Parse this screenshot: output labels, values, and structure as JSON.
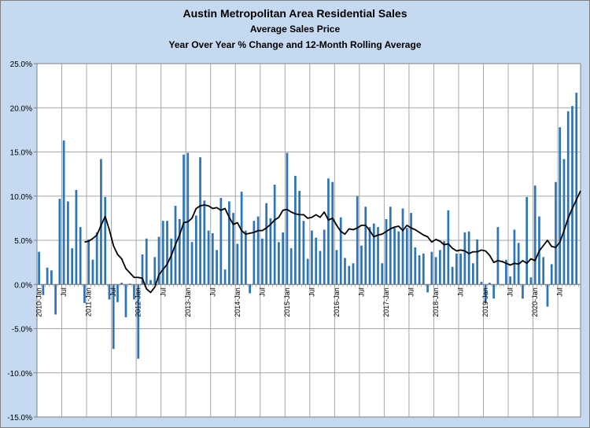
{
  "chart_data": {
    "type": "bar",
    "title": "Austin Metropolitan Area Residential Sales",
    "subtitle": "Average Sales Price",
    "subtitle2": "Year Over Year % Change and  12-Month Rolling Average",
    "ylim": [
      -15,
      25
    ],
    "ytick_labels": [
      "25.0%",
      "20.0%",
      "15.0%",
      "10.0%",
      "5.0%",
      "0.0%",
      "-5.0%",
      "-10.0%",
      "-15.0%"
    ],
    "x_labels": [
      {
        "index": 0,
        "label": "2010-Jan"
      },
      {
        "index": 6,
        "label": "Jul"
      },
      {
        "index": 12,
        "label": "2011-Jan"
      },
      {
        "index": 18,
        "label": "Jul"
      },
      {
        "index": 24,
        "label": "2012-Jan"
      },
      {
        "index": 30,
        "label": "Jul"
      },
      {
        "index": 36,
        "label": "2013-Jan"
      },
      {
        "index": 42,
        "label": "Jul"
      },
      {
        "index": 48,
        "label": "2014-Jan"
      },
      {
        "index": 54,
        "label": "Jul"
      },
      {
        "index": 60,
        "label": "2015-Jan"
      },
      {
        "index": 66,
        "label": "Jul"
      },
      {
        "index": 72,
        "label": "2016-Jan"
      },
      {
        "index": 78,
        "label": "Jul"
      },
      {
        "index": 84,
        "label": "2017-Jan"
      },
      {
        "index": 90,
        "label": "Jul"
      },
      {
        "index": 96,
        "label": "2018-Jan"
      },
      {
        "index": 102,
        "label": "Jul"
      },
      {
        "index": 108,
        "label": "2019-Jan"
      },
      {
        "index": 114,
        "label": "Jul"
      },
      {
        "index": 120,
        "label": "2020-Jan"
      },
      {
        "index": 126,
        "label": "Jul"
      }
    ],
    "series": [
      {
        "name": "Year Over Year % Change",
        "kind": "bar",
        "color": "#2e75b6",
        "values": [
          3.7,
          -1.2,
          1.9,
          1.6,
          -3.4,
          9.7,
          16.3,
          9.4,
          4.1,
          10.7,
          6.5,
          -2.1,
          5.1,
          2.8,
          5.9,
          14.2,
          9.9,
          -1.7,
          -7.3,
          -2.0,
          0.2,
          -3.7,
          0.1,
          -1.7,
          -8.4,
          3.4,
          5.2,
          0.5,
          3.1,
          5.4,
          7.2,
          7.2,
          5.2,
          8.9,
          7.4,
          14.7,
          14.9,
          4.8,
          7.8,
          14.4,
          9.5,
          6.1,
          5.8,
          3.9,
          9.8,
          1.7,
          9.4,
          8.1,
          4.6,
          10.5,
          6.1,
          -1.0,
          7.2,
          7.7,
          5.2,
          9.2,
          7.5,
          11.3,
          4.8,
          5.9,
          14.9,
          4.1,
          12.3,
          10.6,
          7.2,
          2.9,
          6.1,
          5.3,
          3.8,
          6.2,
          12.0,
          11.6,
          3.9,
          7.6,
          3.0,
          2.1,
          2.4,
          10.0,
          4.4,
          8.8,
          6.5,
          6.9,
          6.5,
          2.4,
          7.4,
          8.8,
          6.4,
          6.0,
          8.6,
          6.4,
          8.1,
          4.2,
          3.3,
          3.5,
          -0.9,
          3.7,
          3.1,
          3.9,
          4.9,
          8.4,
          2.0,
          3.5,
          3.5,
          5.9,
          6.0,
          2.4,
          5.1,
          0.3,
          -2.1,
          0.2,
          -1.6,
          6.5,
          -0.1,
          2.8,
          0.9,
          6.2,
          4.7,
          -1.6,
          9.9,
          0.8,
          11.2,
          7.7,
          3.1,
          -2.5,
          2.3,
          11.6,
          17.8,
          14.2,
          19.6,
          20.2,
          21.7
        ]
      },
      {
        "name": "12-Month Rolling Average",
        "kind": "line",
        "color": "#000000",
        "start_index": 11,
        "values": [
          4.8,
          4.9,
          5.2,
          5.6,
          6.7,
          7.7,
          6.2,
          4.4,
          3.4,
          2.9,
          1.8,
          1.3,
          0.8,
          0.8,
          0.7,
          -0.5,
          -0.9,
          -0.3,
          1.1,
          1.7,
          2.3,
          3.3,
          4.5,
          5.6,
          7.0,
          7.1,
          7.5,
          8.6,
          8.9,
          9.0,
          8.9,
          8.6,
          8.7,
          8.4,
          8.6,
          7.6,
          6.8,
          7.0,
          6.1,
          5.7,
          5.8,
          5.9,
          6.1,
          6.1,
          6.4,
          6.8,
          7.3,
          7.6,
          8.4,
          8.5,
          8.2,
          8.0,
          7.9,
          7.9,
          7.5,
          7.6,
          7.9,
          7.6,
          8.2,
          7.3,
          7.5,
          6.7,
          6.0,
          5.7,
          6.3,
          6.2,
          6.4,
          6.7,
          6.7,
          6.1,
          5.4,
          5.6,
          5.7,
          6.0,
          6.3,
          6.5,
          6.6,
          6.1,
          6.7,
          6.4,
          6.2,
          5.9,
          5.6,
          5.4,
          4.8,
          5.1,
          4.9,
          4.5,
          4.6,
          4.1,
          3.8,
          3.9,
          3.8,
          3.5,
          3.7,
          3.7,
          3.9,
          3.8,
          3.3,
          2.5,
          2.7,
          2.6,
          2.4,
          2.2,
          2.4,
          2.3,
          2.7,
          2.4,
          2.9,
          2.7,
          3.8,
          4.4,
          5.0,
          4.3,
          4.2,
          4.8,
          6.1,
          7.5,
          8.6,
          9.6,
          10.6
        ]
      }
    ]
  }
}
